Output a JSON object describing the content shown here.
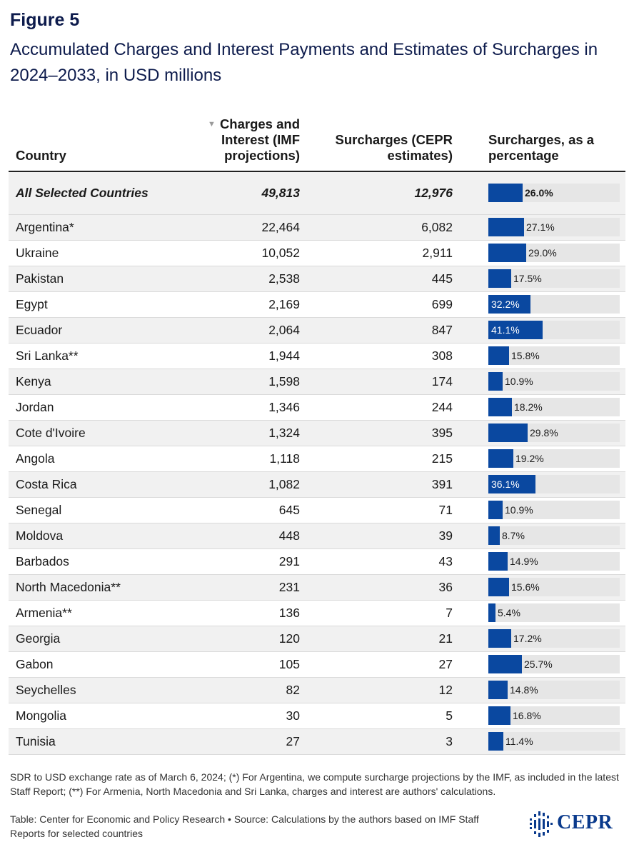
{
  "figure_label": "Figure 5",
  "title": "Accumulated Charges and Interest Payments and Estimates of Surcharges in 2024–2033, in USD millions",
  "table": {
    "headers": {
      "country": "Country",
      "charges": "Charges and Interest (IMF projections)",
      "surcharges": "Surcharges (CEPR estimates)",
      "percentage": "Surcharges, as a percentage"
    },
    "sort_icon": "▼"
  },
  "colors": {
    "bar": "#0a48a0",
    "track": "#e6e6e6",
    "title": "#0d1b4c"
  },
  "chart_data": {
    "type": "table",
    "title": "Accumulated Charges and Interest Payments and Estimates of Surcharges in 2024–2033, in USD millions",
    "columns": [
      "Country",
      "Charges and Interest (IMF projections)",
      "Surcharges (CEPR estimates)",
      "Surcharges, as a percentage"
    ],
    "bar_max_percent": 100,
    "rows": [
      {
        "country": "All Selected Countries",
        "charges": "49,813",
        "surcharges": "12,976",
        "percent": 26.0,
        "label": "26.0%",
        "total": true
      },
      {
        "country": "Argentina*",
        "charges": "22,464",
        "surcharges": "6,082",
        "percent": 27.1,
        "label": "27.1%"
      },
      {
        "country": "Ukraine",
        "charges": "10,052",
        "surcharges": "2,911",
        "percent": 29.0,
        "label": "29.0%"
      },
      {
        "country": "Pakistan",
        "charges": "2,538",
        "surcharges": "445",
        "percent": 17.5,
        "label": "17.5%"
      },
      {
        "country": "Egypt",
        "charges": "2,169",
        "surcharges": "699",
        "percent": 32.2,
        "label": "32.2%"
      },
      {
        "country": "Ecuador",
        "charges": "2,064",
        "surcharges": "847",
        "percent": 41.1,
        "label": "41.1%"
      },
      {
        "country": "Sri Lanka**",
        "charges": "1,944",
        "surcharges": "308",
        "percent": 15.8,
        "label": "15.8%"
      },
      {
        "country": "Kenya",
        "charges": "1,598",
        "surcharges": "174",
        "percent": 10.9,
        "label": "10.9%"
      },
      {
        "country": "Jordan",
        "charges": "1,346",
        "surcharges": "244",
        "percent": 18.2,
        "label": "18.2%"
      },
      {
        "country": "Cote d'Ivoire",
        "charges": "1,324",
        "surcharges": "395",
        "percent": 29.8,
        "label": "29.8%"
      },
      {
        "country": "Angola",
        "charges": "1,118",
        "surcharges": "215",
        "percent": 19.2,
        "label": "19.2%"
      },
      {
        "country": "Costa Rica",
        "charges": "1,082",
        "surcharges": "391",
        "percent": 36.1,
        "label": "36.1%"
      },
      {
        "country": "Senegal",
        "charges": "645",
        "surcharges": "71",
        "percent": 10.9,
        "label": "10.9%"
      },
      {
        "country": "Moldova",
        "charges": "448",
        "surcharges": "39",
        "percent": 8.7,
        "label": "8.7%"
      },
      {
        "country": "Barbados",
        "charges": "291",
        "surcharges": "43",
        "percent": 14.9,
        "label": "14.9%"
      },
      {
        "country": "North Macedonia**",
        "charges": "231",
        "surcharges": "36",
        "percent": 15.6,
        "label": "15.6%"
      },
      {
        "country": "Armenia**",
        "charges": "136",
        "surcharges": "7",
        "percent": 5.4,
        "label": "5.4%"
      },
      {
        "country": "Georgia",
        "charges": "120",
        "surcharges": "21",
        "percent": 17.2,
        "label": "17.2%"
      },
      {
        "country": "Gabon",
        "charges": "105",
        "surcharges": "27",
        "percent": 25.7,
        "label": "25.7%"
      },
      {
        "country": "Seychelles",
        "charges": "82",
        "surcharges": "12",
        "percent": 14.8,
        "label": "14.8%"
      },
      {
        "country": "Mongolia",
        "charges": "30",
        "surcharges": "5",
        "percent": 16.8,
        "label": "16.8%"
      },
      {
        "country": "Tunisia",
        "charges": "27",
        "surcharges": "3",
        "percent": 11.4,
        "label": "11.4%"
      }
    ]
  },
  "note": "SDR to USD exchange rate as of March 6, 2024; (*) For Argentina, we compute surcharge projections by the IMF, as included in the latest Staff Report; (**) For Armenia, North Macedonia and Sri Lanka, charges and interest are authors' calculations.",
  "source": "Table: Center for Economic and Policy Research • Source: Calculations by the authors based on IMF Staff Reports for selected countries",
  "logo_text": "CEPR"
}
